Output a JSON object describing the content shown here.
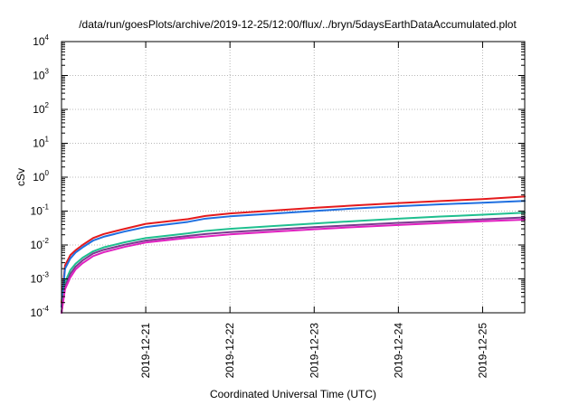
{
  "chart_data": {
    "type": "line",
    "title": "/data/run/goesPlots/archive/2019-12-25/12:00/flux/../bryn/5daysEarthDataAccumulated.plot",
    "xlabel": "Coordinated Universal Time (UTC)",
    "ylabel": "cSv",
    "x_scale": "time",
    "y_scale": "log",
    "xlim": [
      "2019-12-20T00:00",
      "2019-12-25T12:00"
    ],
    "ylim": [
      0.0001,
      10000
    ],
    "x_ticks": [
      "2019-12-21",
      "2019-12-22",
      "2019-12-23",
      "2019-12-24",
      "2019-12-25"
    ],
    "y_ticks": [
      {
        "base": "10",
        "exp": "-4",
        "value": 0.0001
      },
      {
        "base": "10",
        "exp": "-3",
        "value": 0.001
      },
      {
        "base": "10",
        "exp": "-2",
        "value": 0.01
      },
      {
        "base": "10",
        "exp": "-1",
        "value": 0.1
      },
      {
        "base": "10",
        "exp": "0",
        "value": 1
      },
      {
        "base": "10",
        "exp": "1",
        "value": 10
      },
      {
        "base": "10",
        "exp": "2",
        "value": 100
      },
      {
        "base": "10",
        "exp": "3",
        "value": 1000
      },
      {
        "base": "10",
        "exp": "4",
        "value": 10000
      }
    ],
    "grid": true,
    "legend": "none",
    "series": [
      {
        "color": "#e41a1c",
        "points": [
          [
            "2019-12-20T00:00",
            0.0002
          ],
          [
            "2019-12-20T01:00",
            0.0025
          ],
          [
            "2019-12-20T02:30",
            0.005
          ],
          [
            "2019-12-20T04:00",
            0.007
          ],
          [
            "2019-12-20T06:00",
            0.01
          ],
          [
            "2019-12-20T09:00",
            0.016
          ],
          [
            "2019-12-20T12:00",
            0.021
          ],
          [
            "2019-12-20T18:00",
            0.03
          ],
          [
            "2019-12-21T00:00",
            0.042
          ],
          [
            "2019-12-21T12:00",
            0.058
          ],
          [
            "2019-12-21T17:00",
            0.072
          ],
          [
            "2019-12-22T00:00",
            0.085
          ],
          [
            "2019-12-22T12:00",
            0.103
          ],
          [
            "2019-12-23T00:00",
            0.125
          ],
          [
            "2019-12-23T12:00",
            0.148
          ],
          [
            "2019-12-24T00:00",
            0.172
          ],
          [
            "2019-12-24T12:00",
            0.198
          ],
          [
            "2019-12-25T00:00",
            0.225
          ],
          [
            "2019-12-25T12:00",
            0.27
          ]
        ]
      },
      {
        "color": "#1f6fe0",
        "points": [
          [
            "2019-12-20T00:00",
            0.00015
          ],
          [
            "2019-12-20T01:00",
            0.002
          ],
          [
            "2019-12-20T02:30",
            0.004
          ],
          [
            "2019-12-20T04:00",
            0.006
          ],
          [
            "2019-12-20T06:00",
            0.0085
          ],
          [
            "2019-12-20T09:00",
            0.0135
          ],
          [
            "2019-12-20T12:00",
            0.0175
          ],
          [
            "2019-12-20T18:00",
            0.025
          ],
          [
            "2019-12-21T00:00",
            0.034
          ],
          [
            "2019-12-21T12:00",
            0.048
          ],
          [
            "2019-12-21T17:00",
            0.06
          ],
          [
            "2019-12-22T00:00",
            0.07
          ],
          [
            "2019-12-22T12:00",
            0.084
          ],
          [
            "2019-12-23T00:00",
            0.101
          ],
          [
            "2019-12-23T12:00",
            0.12
          ],
          [
            "2019-12-24T00:00",
            0.139
          ],
          [
            "2019-12-24T12:00",
            0.158
          ],
          [
            "2019-12-25T00:00",
            0.177
          ],
          [
            "2019-12-25T12:00",
            0.2
          ]
        ]
      },
      {
        "color": "#1fbf8f",
        "points": [
          [
            "2019-12-20T00:00",
            0.0001
          ],
          [
            "2019-12-20T01:00",
            0.0008
          ],
          [
            "2019-12-20T02:30",
            0.0018
          ],
          [
            "2019-12-20T04:00",
            0.0028
          ],
          [
            "2019-12-20T06:00",
            0.0042
          ],
          [
            "2019-12-20T09:00",
            0.0065
          ],
          [
            "2019-12-20T12:00",
            0.0085
          ],
          [
            "2019-12-20T18:00",
            0.012
          ],
          [
            "2019-12-21T00:00",
            0.016
          ],
          [
            "2019-12-21T12:00",
            0.022
          ],
          [
            "2019-12-21T17:00",
            0.026
          ],
          [
            "2019-12-22T00:00",
            0.03
          ],
          [
            "2019-12-22T12:00",
            0.036
          ],
          [
            "2019-12-23T00:00",
            0.043
          ],
          [
            "2019-12-23T12:00",
            0.051
          ],
          [
            "2019-12-24T00:00",
            0.06
          ],
          [
            "2019-12-24T12:00",
            0.069
          ],
          [
            "2019-12-25T00:00",
            0.078
          ],
          [
            "2019-12-25T12:00",
            0.09
          ]
        ]
      },
      {
        "color": "#7a3b8f",
        "points": [
          [
            "2019-12-20T00:00",
            0.0001
          ],
          [
            "2019-12-20T01:00",
            0.0006
          ],
          [
            "2019-12-20T02:30",
            0.0014
          ],
          [
            "2019-12-20T04:00",
            0.0023
          ],
          [
            "2019-12-20T06:00",
            0.0035
          ],
          [
            "2019-12-20T09:00",
            0.0056
          ],
          [
            "2019-12-20T12:00",
            0.0072
          ],
          [
            "2019-12-20T18:00",
            0.0102
          ],
          [
            "2019-12-21T00:00",
            0.0135
          ],
          [
            "2019-12-21T12:00",
            0.0185
          ],
          [
            "2019-12-21T17:00",
            0.021
          ],
          [
            "2019-12-22T00:00",
            0.024
          ],
          [
            "2019-12-22T12:00",
            0.0285
          ],
          [
            "2019-12-23T00:00",
            0.0335
          ],
          [
            "2019-12-23T12:00",
            0.039
          ],
          [
            "2019-12-24T00:00",
            0.045
          ],
          [
            "2019-12-24T12:00",
            0.051
          ],
          [
            "2019-12-25T00:00",
            0.057
          ],
          [
            "2019-12-25T12:00",
            0.065
          ]
        ]
      },
      {
        "color": "#e020c0",
        "points": [
          [
            "2019-12-20T00:00",
            0.0001
          ],
          [
            "2019-12-20T01:00",
            0.0005
          ],
          [
            "2019-12-20T02:30",
            0.0011
          ],
          [
            "2019-12-20T04:00",
            0.0019
          ],
          [
            "2019-12-20T06:00",
            0.0029
          ],
          [
            "2019-12-20T09:00",
            0.0047
          ],
          [
            "2019-12-20T12:00",
            0.0061
          ],
          [
            "2019-12-20T18:00",
            0.0088
          ],
          [
            "2019-12-21T00:00",
            0.0118
          ],
          [
            "2019-12-21T12:00",
            0.0162
          ],
          [
            "2019-12-21T17:00",
            0.0178
          ],
          [
            "2019-12-22T00:00",
            0.0205
          ],
          [
            "2019-12-22T12:00",
            0.0245
          ],
          [
            "2019-12-23T00:00",
            0.029
          ],
          [
            "2019-12-23T12:00",
            0.034
          ],
          [
            "2019-12-24T00:00",
            0.039
          ],
          [
            "2019-12-24T12:00",
            0.0445
          ],
          [
            "2019-12-25T00:00",
            0.05
          ],
          [
            "2019-12-25T12:00",
            0.056
          ]
        ]
      }
    ]
  }
}
